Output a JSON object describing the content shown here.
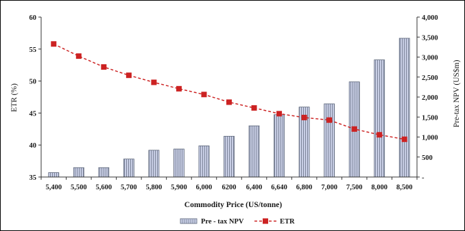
{
  "chart_data": {
    "type": "bar+line",
    "categories": [
      "5,400",
      "5,500",
      "5,600",
      "5,700",
      "5,800",
      "5,900",
      "6,000",
      "6200",
      "6,400",
      "6,640",
      "6,800",
      "7,000",
      "7,500",
      "8,000",
      "8,500"
    ],
    "series": [
      {
        "name": "Pre - tax NPV",
        "type": "bar",
        "axis": "right",
        "values": [
          110,
          235,
          235,
          450,
          670,
          700,
          780,
          1020,
          1280,
          1560,
          1750,
          1830,
          2380,
          2930,
          3470
        ],
        "color": "#c9cfe6"
      },
      {
        "name": "ETR",
        "type": "line",
        "axis": "left",
        "values": [
          55.8,
          53.9,
          52.2,
          50.9,
          49.8,
          48.8,
          47.9,
          46.7,
          45.8,
          44.9,
          44.3,
          43.9,
          42.5,
          41.6,
          40.9
        ],
        "color": "#cc2222"
      }
    ],
    "title": "",
    "xlabel": "Commodity Price (US/tonne)",
    "ylabel": "ETR (%)",
    "y2label": "Pre-tax NPV (US$m)",
    "ylim": [
      35,
      60
    ],
    "yticks": [
      "35",
      "40",
      "45",
      "50",
      "55",
      "60"
    ],
    "y2lim": [
      0,
      4000
    ],
    "y2ticks": [
      "-",
      "500",
      "1,000",
      "1,500",
      "2,000",
      "2,500",
      "3,000",
      "3,500",
      "4,000"
    ],
    "grid": false,
    "legend": "bottom-center"
  }
}
